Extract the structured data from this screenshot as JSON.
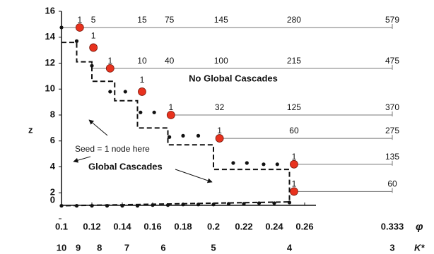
{
  "chart_data": {
    "type": "scatter",
    "xlabel": "φ",
    "ylabel": "z",
    "klabel": "K*",
    "xlim": [
      0.1,
      0.333
    ],
    "ylim": [
      0,
      16
    ],
    "xticks": [
      0.1,
      0.12,
      0.14,
      0.16,
      0.18,
      0.2,
      0.22,
      0.24,
      0.26,
      0.333
    ],
    "yticks": [
      0,
      2,
      4,
      6,
      8,
      10,
      12,
      14,
      16
    ],
    "kticks": [
      {
        "value": 0.1,
        "label": "10"
      },
      {
        "value": 0.111,
        "label": "9"
      },
      {
        "value": 0.125,
        "label": "8"
      },
      {
        "value": 0.143,
        "label": "7"
      },
      {
        "value": 0.167,
        "label": "6"
      },
      {
        "value": 0.2,
        "label": "5"
      },
      {
        "value": 0.25,
        "label": "4"
      },
      {
        "value": 0.333,
        "label": "3"
      }
    ],
    "red_points": {
      "color": "#e8321e",
      "x": [
        0.112,
        0.121,
        0.132,
        0.153,
        0.172,
        0.204,
        0.253,
        0.253
      ],
      "y": [
        14.75,
        13.2,
        11.6,
        9.8,
        8.0,
        6.2,
        4.2,
        2.1
      ]
    },
    "black_points": {
      "color": "#111111",
      "x": [
        0.1,
        0.11,
        0.12,
        0.132,
        0.142,
        0.152,
        0.161,
        0.171,
        0.18,
        0.19,
        0.204,
        0.213,
        0.222,
        0.233,
        0.242,
        0.253,
        0.1,
        0.11,
        0.12,
        0.13,
        0.14,
        0.15,
        0.16,
        0.17,
        0.18,
        0.19,
        0.2,
        0.21,
        0.22,
        0.23,
        0.24,
        0.25
      ],
      "y": [
        14.75,
        13.7,
        11.8,
        9.8,
        9.8,
        8.2,
        8.2,
        6.3,
        6.4,
        6.4,
        6.2,
        4.3,
        4.3,
        4.2,
        4.2,
        4.2,
        1.0,
        1.0,
        1.0,
        1.0,
        1.0,
        1.0,
        1.05,
        1.05,
        1.1,
        1.1,
        1.1,
        1.15,
        1.15,
        1.2,
        1.2,
        1.25
      ]
    },
    "boundary": {
      "color": "#111111",
      "x": [
        0.1,
        0.11,
        0.11,
        0.12,
        0.12,
        0.135,
        0.135,
        0.15,
        0.15,
        0.17,
        0.17,
        0.2,
        0.2,
        0.25,
        0.25,
        0.1
      ],
      "y": [
        13.6,
        13.6,
        12.1,
        12.1,
        10.6,
        10.6,
        9.1,
        9.1,
        7.0,
        7.0,
        5.7,
        5.7,
        3.8,
        3.8,
        1.3,
        1.0
      ]
    },
    "rows": [
      {
        "z": 14.75,
        "start": 0.1,
        "x": [
          0.112,
          0.121,
          0.153,
          0.171,
          0.205,
          0.253,
          0.333
        ],
        "labels": [
          1,
          5,
          15,
          75,
          145,
          280,
          579
        ]
      },
      {
        "z": 11.6,
        "start": 0.12,
        "x": [
          0.132,
          0.153,
          0.171,
          0.205,
          0.253,
          0.333
        ],
        "labels": [
          1,
          10,
          40,
          100,
          215,
          475
        ]
      },
      {
        "z": 8.0,
        "start": 0.172,
        "x": [
          0.172,
          0.204,
          0.253,
          0.333
        ],
        "labels": [
          1,
          32,
          125,
          370
        ]
      },
      {
        "z": 6.2,
        "start": 0.204,
        "x": [
          0.204,
          0.253,
          0.333
        ],
        "labels": [
          1,
          60,
          275
        ]
      },
      {
        "z": 4.2,
        "start": 0.253,
        "x": [
          0.253,
          0.333
        ],
        "labels": [
          1,
          135
        ]
      },
      {
        "z": 2.1,
        "start": 0.253,
        "x": [
          0.253,
          0.333
        ],
        "labels": [
          1,
          60
        ]
      }
    ],
    "point_labels": {
      "x": [
        0.121,
        0.153
      ],
      "y": [
        13.2,
        9.8
      ],
      "labels": [
        1,
        1
      ]
    },
    "annotations": [
      "No Global Cascades",
      "Seed = 1 node here",
      "Global Cascades"
    ]
  }
}
